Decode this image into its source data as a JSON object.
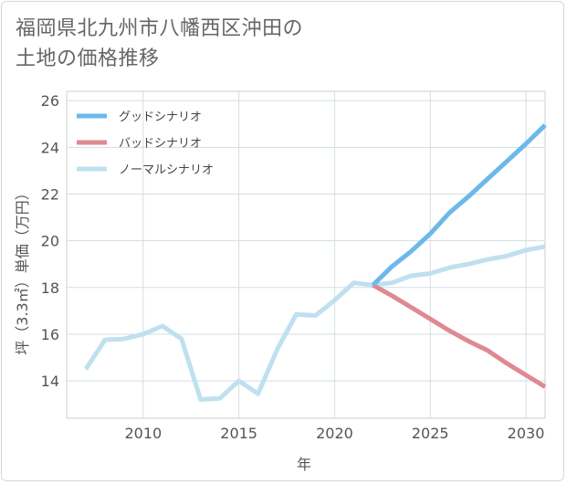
{
  "title": {
    "line1": "福岡県北九州市八幡西区沖田の",
    "line2": "土地の価格推移"
  },
  "chart_data": {
    "type": "line",
    "title": "福岡県北九州市八幡西区沖田の土地の価格推移",
    "xlabel": "年",
    "ylabel": "坪（3.3㎡）単価（万円）",
    "xlim": [
      2006,
      2031
    ],
    "ylim": [
      12.4,
      26.4
    ],
    "xticks": [
      2010,
      2015,
      2020,
      2025,
      2030
    ],
    "yticks": [
      14,
      16,
      18,
      20,
      22,
      24,
      26
    ],
    "grid": true,
    "legend_position": "top-left",
    "series": [
      {
        "name": "グッドシナリオ",
        "color": "#6cb8ea",
        "x": [
          2022,
          2023,
          2024,
          2025,
          2026,
          2027,
          2028,
          2029,
          2030,
          2031
        ],
        "values": [
          18.1,
          18.9,
          19.55,
          20.3,
          21.2,
          21.9,
          22.65,
          23.4,
          24.15,
          24.95
        ]
      },
      {
        "name": "バッドシナリオ",
        "color": "#de8a92",
        "x": [
          2022,
          2023,
          2024,
          2025,
          2026,
          2027,
          2028,
          2029,
          2030,
          2031
        ],
        "values": [
          18.1,
          17.65,
          17.15,
          16.65,
          16.15,
          15.7,
          15.3,
          14.75,
          14.25,
          13.75
        ]
      },
      {
        "name": "ノーマルシナリオ",
        "color": "#bfe0ef",
        "x": [
          2007,
          2008,
          2009,
          2010,
          2011,
          2012,
          2013,
          2014,
          2015,
          2016,
          2017,
          2018,
          2019,
          2020,
          2021,
          2022,
          2023,
          2024,
          2025,
          2026,
          2027,
          2028,
          2029,
          2030,
          2031
        ],
        "values": [
          14.5,
          15.75,
          15.8,
          16.0,
          16.35,
          15.8,
          13.2,
          13.25,
          14.0,
          13.45,
          15.35,
          16.85,
          16.8,
          17.45,
          18.2,
          18.1,
          18.2,
          18.5,
          18.6,
          18.85,
          19.0,
          19.2,
          19.35,
          19.6,
          19.75
        ]
      }
    ]
  }
}
